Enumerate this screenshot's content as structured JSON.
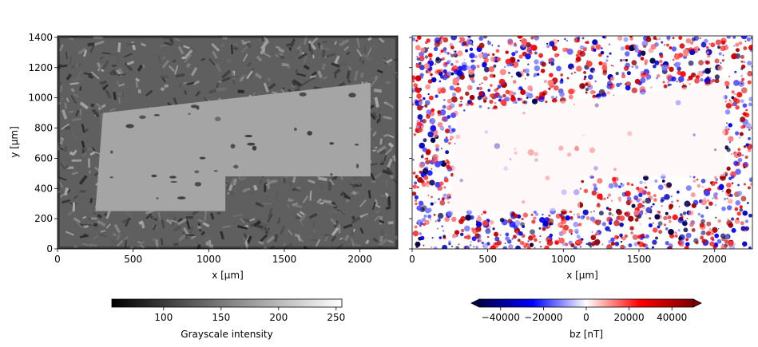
{
  "chart_data": [
    {
      "type": "heatmap",
      "panel": "left",
      "title": "",
      "xlabel": "x [µm]",
      "ylabel": "y [µm]",
      "xlim": [
        0,
        2250
      ],
      "ylim": [
        0,
        1410
      ],
      "x_ticks": [
        0,
        500,
        1000,
        1500,
        2000
      ],
      "y_ticks": [
        0,
        200,
        400,
        600,
        800,
        1000,
        1200,
        1400
      ],
      "colormap": "gray",
      "colorbar": {
        "label": "Grayscale intensity",
        "range": [
          55,
          255
        ],
        "ticks": [
          100,
          150,
          200,
          250
        ],
        "orientation": "horizontal"
      },
      "description_regions": {
        "background_mean_intensity": 95,
        "sample_mean_intensity": 165,
        "sample_outline": [
          [
            250,
            250
          ],
          [
            1110,
            250
          ],
          [
            1110,
            480
          ],
          [
            2070,
            480
          ],
          [
            2070,
            1100
          ],
          [
            300,
            900
          ],
          [
            250,
            250
          ]
        ]
      }
    },
    {
      "type": "heatmap",
      "panel": "right",
      "title": "",
      "xlabel": "x [µm]",
      "ylabel": "",
      "xlim": [
        0,
        2250
      ],
      "ylim": [
        0,
        1410
      ],
      "x_ticks": [
        0,
        500,
        1000,
        1500,
        2000
      ],
      "y_ticks": [
        0,
        200,
        400,
        600,
        800,
        1000,
        1200,
        1400
      ],
      "show_y_ticklabels": false,
      "colormap": "seismic",
      "colorbar": {
        "label": "bz [nT]",
        "range": [
          -50000,
          50000
        ],
        "ticks": [
          -40000,
          -20000,
          0,
          20000,
          40000
        ],
        "extend": "both",
        "orientation": "horizontal"
      }
    }
  ],
  "colors": {
    "cmap_seismic": [
      "#00004c",
      "#0000ff",
      "#ffffff",
      "#ff0000",
      "#800000"
    ]
  }
}
